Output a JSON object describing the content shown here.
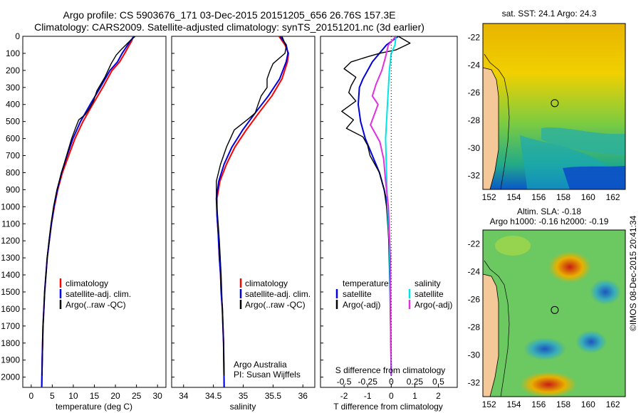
{
  "header": {
    "title_line1": "Argo profile: CS 5903676_171 03-Dec-2015 20151205_656 26.76S 157.3E",
    "title_line2": "Climatology: CARS2009. Satellite-adjusted climatology: synTS_20151201.nc (3d earlier)"
  },
  "colors": {
    "climatology": "#ff0000",
    "satellite": "#0000dd",
    "argo": "#000000",
    "satellite_salinity": "#00e5e5",
    "argo_salinity": "#e030e0",
    "land": "#f5c89a"
  },
  "chart_data": [
    {
      "id": "temperature",
      "type": "line",
      "xlabel": "temperature (deg C)",
      "ylabel": "",
      "xlim": [
        -2,
        32
      ],
      "ylim": [
        2060,
        0
      ],
      "xticks": [
        "0",
        "5",
        "10",
        "15",
        "20",
        "25",
        "30"
      ],
      "xtick_values": [
        0,
        5,
        10,
        15,
        20,
        25,
        30
      ],
      "yticks": [
        "0",
        "100",
        "200",
        "300",
        "400",
        "500",
        "600",
        "700",
        "800",
        "900",
        "1000",
        "1100",
        "1200",
        "1300",
        "1400",
        "1500",
        "1600",
        "1700",
        "1800",
        "1900",
        "2000"
      ],
      "ytick_values": [
        0,
        100,
        200,
        300,
        400,
        500,
        600,
        700,
        800,
        900,
        1000,
        1100,
        1200,
        1300,
        1400,
        1500,
        1600,
        1700,
        1800,
        1900,
        2000
      ],
      "legend": [
        "climatology",
        "satellite-adj. clim.",
        "Argo(..raw -QC)"
      ],
      "series": [
        {
          "name": "climatology",
          "color": "#ff0000",
          "x": [
            24.2,
            23.9,
            22.2,
            21.0,
            19.2,
            17.0,
            14.6,
            12.3,
            10.4,
            8.9,
            7.4,
            6.3,
            5.5,
            4.8,
            4.3,
            3.8,
            3.5,
            3.2,
            3.0,
            2.8,
            2.6,
            2.5
          ],
          "y": [
            0,
            25,
            100,
            150,
            200,
            300,
            400,
            500,
            600,
            700,
            800,
            900,
            1000,
            1100,
            1200,
            1300,
            1400,
            1500,
            1600,
            1700,
            1900,
            2060
          ]
        },
        {
          "name": "satellite-adj. clim.",
          "color": "#0000dd",
          "x": [
            24.5,
            23.6,
            21.6,
            20.5,
            18.7,
            16.4,
            14.0,
            11.7,
            9.9,
            8.5,
            7.2,
            6.2,
            5.4,
            4.8,
            4.3,
            3.8,
            3.5,
            3.2,
            3.0,
            2.8,
            2.6,
            2.5
          ],
          "y": [
            0,
            25,
            100,
            150,
            200,
            300,
            400,
            500,
            600,
            700,
            800,
            900,
            1000,
            1100,
            1200,
            1300,
            1400,
            1500,
            1600,
            1700,
            1900,
            2060
          ]
        },
        {
          "name": "Argo(..raw -QC)",
          "color": "#000000",
          "x": [
            24.7,
            23.3,
            21.3,
            20.2,
            19.0,
            17.5,
            15.6,
            14.8,
            13.9,
            12.8,
            11.3,
            10.5,
            9.6,
            8.4,
            7.2,
            6.1,
            5.3,
            4.7,
            4.2,
            3.8,
            3.5,
            3.2,
            3.0,
            2.8,
            2.7,
            2.6
          ],
          "y": [
            0,
            30,
            80,
            110,
            160,
            240,
            320,
            380,
            420,
            460,
            490,
            540,
            600,
            700,
            800,
            900,
            1000,
            1100,
            1200,
            1300,
            1400,
            1500,
            1600,
            1700,
            1850,
            1990
          ]
        }
      ]
    },
    {
      "id": "salinity",
      "type": "line",
      "xlabel": "salinity",
      "ylabel": "",
      "xlim": [
        33.8,
        36.2
      ],
      "ylim": [
        2060,
        0
      ],
      "xticks": [
        "34",
        "34.5",
        "35",
        "35.5",
        "36"
      ],
      "xtick_values": [
        34,
        34.5,
        35,
        35.5,
        36
      ],
      "legend": [
        "climatology",
        "satellite-adj. clim.",
        "Argo(..raw -QC)"
      ],
      "series": [
        {
          "name": "climatology",
          "color": "#ff0000",
          "x": [
            35.6,
            35.7,
            35.76,
            35.74,
            35.65,
            35.48,
            35.26,
            35.05,
            34.86,
            34.72,
            34.61,
            34.56,
            34.56,
            34.58,
            34.6,
            34.62,
            34.63,
            34.65,
            34.66,
            34.67,
            34.68
          ],
          "y": [
            0,
            50,
            100,
            150,
            250,
            350,
            450,
            550,
            650,
            750,
            850,
            950,
            1050,
            1150,
            1300,
            1400,
            1500,
            1600,
            1700,
            1800,
            2060
          ]
        },
        {
          "name": "satellite-adj. clim.",
          "color": "#0000dd",
          "x": [
            35.62,
            35.72,
            35.75,
            35.72,
            35.61,
            35.42,
            35.2,
            34.99,
            34.81,
            34.68,
            34.59,
            34.55,
            34.56,
            34.58,
            34.6,
            34.62,
            34.63,
            34.65,
            34.66,
            34.67,
            34.68
          ],
          "y": [
            0,
            50,
            100,
            150,
            250,
            350,
            450,
            550,
            650,
            750,
            850,
            950,
            1050,
            1150,
            1300,
            1400,
            1500,
            1600,
            1700,
            1800,
            2060
          ]
        },
        {
          "name": "Argo(..raw -QC)",
          "color": "#000000",
          "x": [
            35.65,
            35.72,
            35.7,
            35.5,
            35.45,
            35.4,
            35.4,
            35.3,
            35.25,
            35.2,
            35.1,
            34.85,
            34.72,
            34.62,
            34.55,
            34.55,
            34.57,
            34.6,
            34.63,
            34.65,
            34.67,
            34.68
          ],
          "y": [
            0,
            60,
            100,
            160,
            200,
            250,
            300,
            350,
            400,
            450,
            480,
            550,
            650,
            750,
            850,
            950,
            1050,
            1200,
            1400,
            1600,
            1800,
            1990
          ]
        }
      ]
    },
    {
      "id": "difference",
      "type": "line",
      "xlabel": "T difference from climatology",
      "x2label": "S difference from climatology",
      "xlim": [
        -3,
        2.8
      ],
      "ylim": [
        2060,
        0
      ],
      "xticks": [
        "-2",
        "-1",
        "0",
        "1",
        "2"
      ],
      "xtick_values": [
        -2,
        -1,
        0,
        1,
        2
      ],
      "x2ticks": [
        "-0.5",
        "-0.25",
        "0",
        "0.25",
        "0.5"
      ],
      "x2tick_values": [
        -0.5,
        -0.25,
        0,
        0.25,
        0.5
      ],
      "legend": {
        "temperature_header": "temperature",
        "salinity_header": "salinity",
        "satellite": "satellite",
        "argo": "Argo(-adj)"
      },
      "series": [
        {
          "name": "temperature satellite",
          "color": "#0000dd",
          "x": [
            0.3,
            -0.2,
            -0.5,
            -0.8,
            -1.0,
            -1.2,
            -1.35,
            -1.4,
            -1.3,
            -1.1,
            -0.8,
            -0.5,
            -0.3,
            -0.15,
            -0.1,
            -0.05,
            0
          ],
          "y": [
            0,
            50,
            100,
            150,
            200,
            250,
            300,
            400,
            500,
            600,
            700,
            800,
            900,
            1000,
            1200,
            1500,
            1990
          ]
        },
        {
          "name": "temperature Argo",
          "color": "#000000",
          "x": [
            0.3,
            0.8,
            0.2,
            -0.5,
            -1.0,
            -1.7,
            -2.0,
            -1.5,
            -1.7,
            -1.8,
            -1.5,
            -2.1,
            -1.6,
            -1.9,
            -1.2,
            -1.0,
            -0.9,
            -0.5,
            -0.3,
            -0.2,
            -0.1,
            -0.05,
            0
          ],
          "y": [
            0,
            40,
            80,
            100,
            120,
            150,
            190,
            240,
            290,
            330,
            380,
            440,
            490,
            540,
            590,
            640,
            700,
            800,
            900,
            1000,
            1200,
            1500,
            1990
          ]
        },
        {
          "name": "salinity satellite",
          "color": "#00e5e5",
          "x": [
            0.05,
            0.04,
            0.0,
            -0.02,
            -0.04,
            -0.06,
            -0.05,
            -0.04,
            -0.02,
            -0.01,
            0
          ],
          "y": [
            0,
            50,
            100,
            200,
            400,
            600,
            800,
            1000,
            1200,
            1500,
            1990
          ]
        },
        {
          "name": "salinity Argo",
          "color": "#e030e0",
          "x": [
            0.05,
            -0.03,
            -0.06,
            -0.1,
            -0.16,
            -0.2,
            -0.14,
            -0.22,
            -0.12,
            -0.08,
            -0.06,
            -0.03,
            -0.01,
            0
          ],
          "y": [
            0,
            50,
            120,
            200,
            280,
            350,
            400,
            520,
            620,
            720,
            850,
            1000,
            1300,
            1990
          ]
        }
      ]
    },
    {
      "id": "sst-map",
      "type": "heatmap",
      "title": "sat. SST: 24.1 Argo: 24.3",
      "xlim": [
        151.5,
        163
      ],
      "ylim": [
        -33,
        -21
      ],
      "xticks": [
        "152",
        "154",
        "156",
        "158",
        "160",
        "162"
      ],
      "xtick_values": [
        152,
        154,
        156,
        158,
        160,
        162
      ],
      "yticks": [
        "-22",
        "-24",
        "-26",
        "-28",
        "-30",
        "-32"
      ],
      "ytick_values": [
        -22,
        -24,
        -26,
        -28,
        -30,
        -32
      ],
      "marker": {
        "lon": 157.3,
        "lat": -26.76
      }
    },
    {
      "id": "sla-map",
      "type": "heatmap",
      "title": "Altim. SLA: -0.18",
      "subtitle": "Argo h1000: -0.16 h2000: -0.19",
      "xlim": [
        151.5,
        163
      ],
      "ylim": [
        -33,
        -21
      ],
      "xticks": [
        "152",
        "154",
        "156",
        "158",
        "160",
        "162"
      ],
      "xtick_values": [
        152,
        154,
        156,
        158,
        160,
        162
      ],
      "yticks": [
        "-22",
        "-24",
        "-26",
        "-28",
        "-30",
        "-32"
      ],
      "ytick_values": [
        -22,
        -24,
        -26,
        -28,
        -30,
        -32
      ],
      "marker": {
        "lon": 157.3,
        "lat": -26.76
      }
    }
  ],
  "annotations": {
    "agency": "Argo Australia",
    "pi": "PI: Susan Wijffels",
    "credit": "©IMOS 08-Dec-2015 20:41:34"
  }
}
